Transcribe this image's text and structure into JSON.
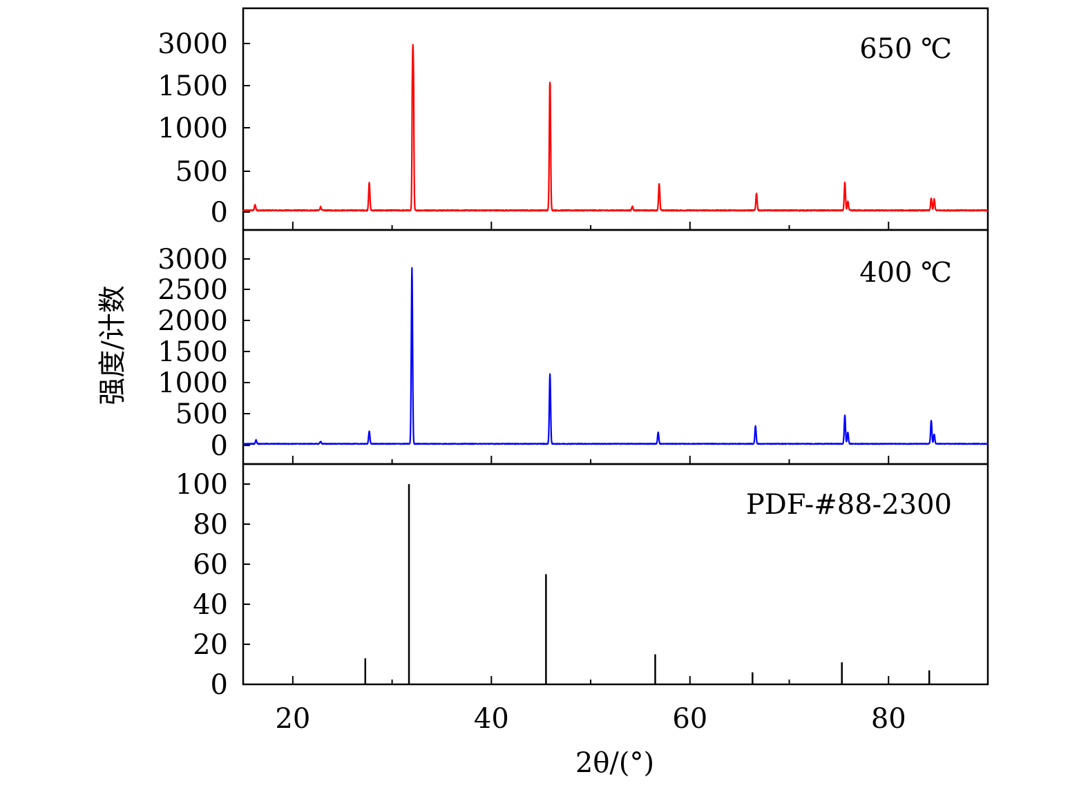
{
  "chart_data": {
    "type": "line",
    "xlabel": "2θ/(°)",
    "ylabel": "强度/计数",
    "xlim": [
      15,
      90
    ],
    "xticks": [
      20,
      40,
      60,
      80
    ],
    "xtick_labels": [
      "20",
      "40",
      "60",
      "80"
    ],
    "x_minor_ticks": [
      30,
      50,
      70
    ],
    "panels": [
      {
        "label": "650 ℃",
        "color": "#ff0000",
        "ytick_labels": [
          "0",
          "500",
          "1000",
          "1500",
          "3000"
        ],
        "baseline": 20,
        "noise": 12,
        "peaks": [
          {
            "x": 16.2,
            "height": 70
          },
          {
            "x": 22.8,
            "height": 45
          },
          {
            "x": 27.7,
            "height": 340
          },
          {
            "x": 32.1,
            "height": 2940
          },
          {
            "x": 45.9,
            "height": 1600
          },
          {
            "x": 54.2,
            "height": 50
          },
          {
            "x": 56.9,
            "height": 330
          },
          {
            "x": 66.7,
            "height": 210
          },
          {
            "x": 75.6,
            "height": 340
          },
          {
            "x": 75.9,
            "height": 110
          },
          {
            "x": 84.3,
            "height": 150
          },
          {
            "x": 84.6,
            "height": 140
          }
        ]
      },
      {
        "label": "400 ℃",
        "color": "#0000ff",
        "ytick_labels": [
          "0",
          "500",
          "1000",
          "1500",
          "2000",
          "2500",
          "3000"
        ],
        "baseline": 25,
        "noise": 10,
        "peaks": [
          {
            "x": 16.3,
            "height": 60
          },
          {
            "x": 22.8,
            "height": 40
          },
          {
            "x": 27.7,
            "height": 200
          },
          {
            "x": 32.0,
            "height": 2830
          },
          {
            "x": 45.9,
            "height": 1110
          },
          {
            "x": 56.8,
            "height": 180
          },
          {
            "x": 66.6,
            "height": 280
          },
          {
            "x": 75.6,
            "height": 450
          },
          {
            "x": 75.9,
            "height": 180
          },
          {
            "x": 84.3,
            "height": 370
          },
          {
            "x": 84.6,
            "height": 150
          }
        ]
      },
      {
        "label": "PDF-#88-2300",
        "color": "#000000",
        "type": "stick",
        "ylim": [
          0,
          100
        ],
        "yticks": [
          0,
          20,
          40,
          60,
          80,
          100
        ],
        "ytick_labels": [
          "0",
          "20",
          "40",
          "60",
          "80",
          "100"
        ],
        "sticks": [
          {
            "x": 27.3,
            "y": 13
          },
          {
            "x": 31.7,
            "y": 100
          },
          {
            "x": 45.5,
            "y": 55
          },
          {
            "x": 56.5,
            "y": 15
          },
          {
            "x": 66.3,
            "y": 6
          },
          {
            "x": 75.3,
            "y": 11
          },
          {
            "x": 84.1,
            "y": 7
          }
        ]
      }
    ]
  }
}
